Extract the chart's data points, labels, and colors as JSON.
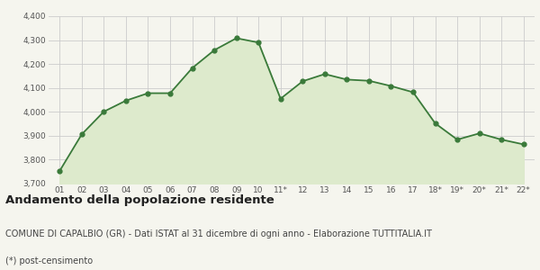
{
  "x_labels": [
    "01",
    "02",
    "03",
    "04",
    "05",
    "06",
    "07",
    "08",
    "09",
    "10",
    "11*",
    "12",
    "13",
    "14",
    "15",
    "16",
    "17",
    "18*",
    "19*",
    "20*",
    "21*",
    "22*"
  ],
  "values": [
    3753,
    3906,
    4001,
    4047,
    4078,
    4078,
    4183,
    4258,
    4308,
    4290,
    4055,
    4128,
    4158,
    4135,
    4130,
    4108,
    4082,
    3952,
    3884,
    3910,
    3884,
    3864
  ],
  "line_color": "#3a7a3a",
  "fill_color": "#ddeacc",
  "marker_color": "#3a7a3a",
  "bg_color": "#f5f5ee",
  "grid_color": "#cccccc",
  "ylim": [
    3700,
    4400
  ],
  "yticks": [
    3700,
    3800,
    3900,
    4000,
    4100,
    4200,
    4300,
    4400
  ],
  "title": "Andamento della popolazione residente",
  "subtitle": "COMUNE DI CAPALBIO (GR) - Dati ISTAT al 31 dicembre di ogni anno - Elaborazione TUTTITALIA.IT",
  "footnote": "(*) post-censimento",
  "title_fontsize": 9.5,
  "subtitle_fontsize": 7,
  "footnote_fontsize": 7
}
